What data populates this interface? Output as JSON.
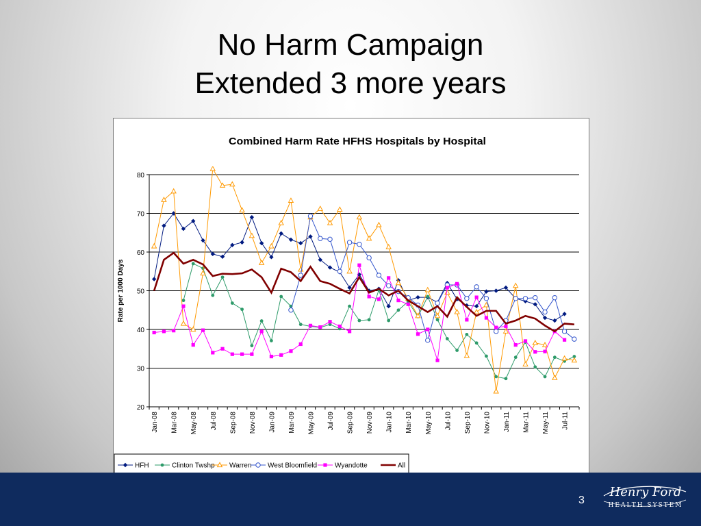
{
  "slide": {
    "title_line1": "No Harm Campaign",
    "title_line2": "Extended 3 more years",
    "page_number": "3",
    "logo_text": "Henry Ford Health System"
  },
  "colors": {
    "footer": "#0f2b5e",
    "HFH": "#001a80",
    "Clinton Twshp": "#2e9b6a",
    "Warren": "#ff9900",
    "West Bloomfield": "#3355cc",
    "Wyandotte": "#ff00ff",
    "All": "#800000"
  },
  "chart_data": {
    "type": "line",
    "title": "Combined Harm Rate HFHS Hospitals by Hospital",
    "ylabel": "Rate per 1000 Days",
    "xlabel": "",
    "ylim": [
      20,
      80
    ],
    "yticks": [
      20,
      30,
      40,
      50,
      60,
      70,
      80
    ],
    "grid": true,
    "legend": "bottom",
    "x": [
      "Jan-08",
      "Feb-08",
      "Mar-08",
      "Apr-08",
      "May-08",
      "Jun-08",
      "Jul-08",
      "Aug-08",
      "Sep-08",
      "Oct-08",
      "Nov-08",
      "Dec-08",
      "Jan-09",
      "Feb-09",
      "Mar-09",
      "Apr-09",
      "May-09",
      "Jun-09",
      "Jul-09",
      "Aug-09",
      "Sep-09",
      "Oct-09",
      "Nov-09",
      "Dec-09",
      "Jan-10",
      "Feb-10",
      "Mar-10",
      "Apr-10",
      "May-10",
      "Jun-10",
      "Jul-10",
      "Aug-10",
      "Sep-10",
      "Oct-10",
      "Nov-10",
      "Dec-10",
      "Jan-11",
      "Feb-11",
      "Mar-11",
      "Apr-11",
      "May-11",
      "Jun-11",
      "Jul-11",
      "Aug-11"
    ],
    "xtick_labels": [
      "Jan-08",
      "Mar-08",
      "May-08",
      "Jul-08",
      "Sep-08",
      "Nov-08",
      "Jan-09",
      "Mar-09",
      "May-09",
      "Jul-09",
      "Sep-09",
      "Nov-09",
      "Jan-10",
      "Mar-10",
      "May-10",
      "Jul-10",
      "Sep-10",
      "Nov-10",
      "Jan-11",
      "Mar-11",
      "May-11",
      "Jul-11"
    ],
    "series": [
      {
        "name": "HFH",
        "marker": "diamond",
        "values": [
          53,
          66.8,
          70,
          66,
          68,
          63,
          59.5,
          58.8,
          61.8,
          62.5,
          69,
          62.3,
          58.7,
          64.8,
          63.2,
          62.3,
          64,
          58,
          56,
          54.8,
          50.8,
          54.2,
          50,
          50.5,
          46,
          52.7,
          47.5,
          48.3,
          48.3,
          47,
          52,
          47.8,
          46.2,
          46,
          49.8,
          50,
          50.8,
          48,
          47.3,
          46.5,
          43,
          42.3,
          44,
          null
        ]
      },
      {
        "name": "Clinton Twshp",
        "marker": "circle-filled",
        "values": [
          null,
          null,
          null,
          47.5,
          57,
          55.8,
          48.8,
          53.5,
          46.8,
          45.2,
          35.8,
          42.2,
          37.1,
          48.5,
          46,
          41.3,
          40.8,
          40.5,
          41.3,
          40.2,
          46,
          42.3,
          42.5,
          50.2,
          42.3,
          45,
          47.2,
          43.3,
          48.5,
          42.5,
          37.6,
          34.6,
          38.7,
          36.5,
          33.1,
          27.8,
          27.3,
          32.8,
          36.7,
          30.3,
          27.8,
          32.8,
          31.8,
          33
        ]
      },
      {
        "name": "Warren",
        "marker": "triangle",
        "values": [
          61.5,
          73.5,
          75.7,
          41.5,
          40,
          54.5,
          81.5,
          77.2,
          77.5,
          70.8,
          64.2,
          57.2,
          61.5,
          67.5,
          73.3,
          55.5,
          69,
          71.2,
          67.5,
          71,
          55,
          69,
          63.5,
          67,
          61.3,
          52,
          48,
          43.5,
          50.2,
          43.5,
          49.5,
          44.5,
          33.2,
          44.5,
          46.3,
          24,
          39.5,
          51.3,
          31,
          36.5,
          36,
          27.5,
          32.5,
          32
        ]
      },
      {
        "name": "West Bloomfield",
        "marker": "circle-open",
        "values": [
          null,
          null,
          null,
          null,
          null,
          null,
          null,
          null,
          null,
          null,
          null,
          null,
          null,
          null,
          45,
          54,
          69.3,
          63.5,
          63.3,
          55,
          62.5,
          62,
          58.5,
          54,
          51.3,
          49.8,
          48.2,
          46.3,
          37.2,
          46.8,
          51.5,
          51.5,
          48,
          51,
          48,
          39.5,
          42.3,
          48,
          48,
          48.2,
          44.5,
          48.2,
          39.5,
          37.5
        ]
      },
      {
        "name": "Wyandotte",
        "marker": "square",
        "values": [
          39.2,
          39.5,
          39.7,
          46,
          36,
          39.8,
          34,
          35,
          33.6,
          33.6,
          33.6,
          39.5,
          33,
          33.4,
          34.4,
          36.2,
          41,
          40.6,
          42,
          40.8,
          39.5,
          56.6,
          48.5,
          47.8,
          53.3,
          47.5,
          46.5,
          38.8,
          40,
          32,
          50.8,
          51.8,
          42.5,
          48.3,
          43,
          40.5,
          40.8,
          36,
          37,
          34.2,
          34.3,
          39.5,
          37.3,
          null
        ]
      },
      {
        "name": "All",
        "marker": "none",
        "values": [
          50,
          58,
          59.8,
          57,
          58,
          56.8,
          53.8,
          54.4,
          54.3,
          54.5,
          55.5,
          53.5,
          49.5,
          55.7,
          54.8,
          52.5,
          56.2,
          52.5,
          51.8,
          50.5,
          49.3,
          53.5,
          49.5,
          50.5,
          48.8,
          50,
          47.5,
          46,
          44.5,
          46,
          43.3,
          48.3,
          45.8,
          43.5,
          44.8,
          44.8,
          41.5,
          42.3,
          43.5,
          42.8,
          41,
          39.5,
          41.5,
          41.3
        ]
      }
    ]
  }
}
